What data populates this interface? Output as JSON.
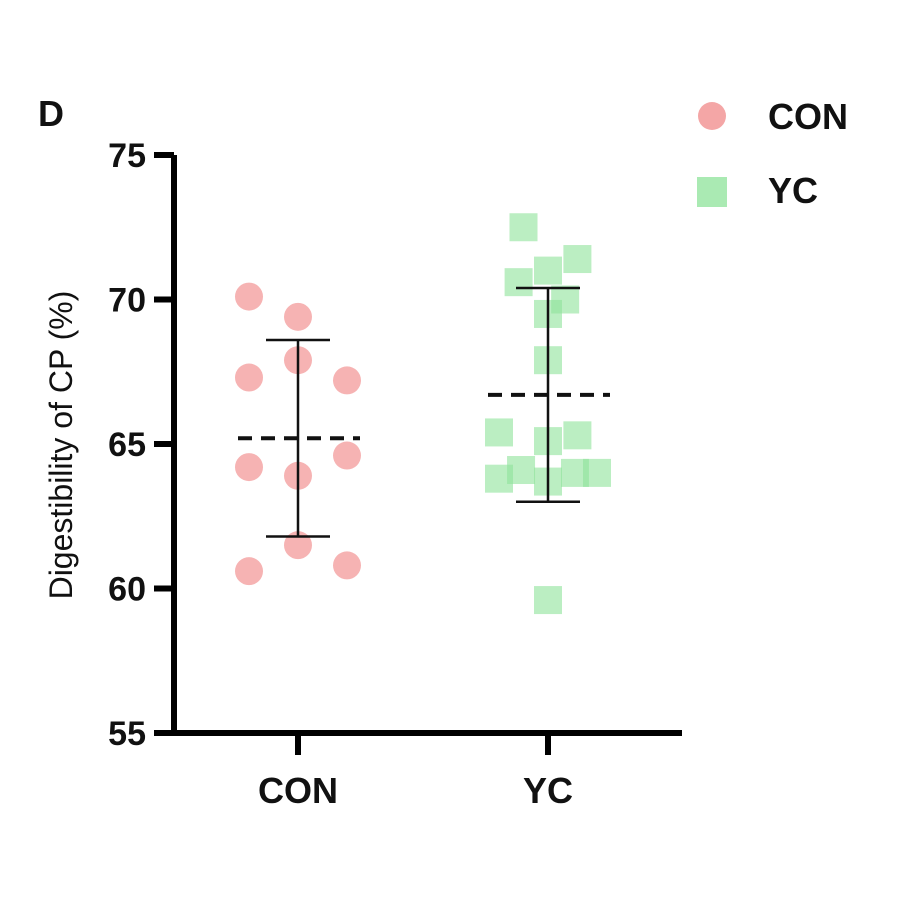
{
  "panel_label": "D",
  "chart_data": {
    "type": "scatter",
    "title": "",
    "xlabel": "",
    "ylabel": "Digestibility of CP (%)",
    "categories": [
      "CON",
      "YC"
    ],
    "ylim": [
      55,
      75
    ],
    "yticks": [
      55,
      60,
      65,
      70,
      75
    ],
    "legend_position": "top-right",
    "series": [
      {
        "name": "CON",
        "color": "#f4a6a6",
        "marker": "circle",
        "category": "CON",
        "mean": 65.2,
        "sd_low": 61.8,
        "sd_high": 68.6,
        "points": [
          {
            "y": 70.1,
            "jitter": -1
          },
          {
            "y": 69.4,
            "jitter": 0
          },
          {
            "y": 67.9,
            "jitter": 0
          },
          {
            "y": 67.3,
            "jitter": -1
          },
          {
            "y": 67.2,
            "jitter": 1
          },
          {
            "y": 64.6,
            "jitter": 1
          },
          {
            "y": 64.2,
            "jitter": -1
          },
          {
            "y": 63.9,
            "jitter": 0
          },
          {
            "y": 61.5,
            "jitter": 0
          },
          {
            "y": 60.8,
            "jitter": 1
          },
          {
            "y": 60.6,
            "jitter": -1
          }
        ]
      },
      {
        "name": "YC",
        "color": "#8ee39a",
        "marker": "square",
        "category": "YC",
        "mean": 66.7,
        "sd_low": 63.0,
        "sd_high": 70.4,
        "points": [
          {
            "y": 72.5,
            "jitter": -0.5
          },
          {
            "y": 71.4,
            "jitter": 0.6
          },
          {
            "y": 71.0,
            "jitter": 0
          },
          {
            "y": 70.6,
            "jitter": -0.6
          },
          {
            "y": 70.0,
            "jitter": 0.35
          },
          {
            "y": 69.5,
            "jitter": 0
          },
          {
            "y": 67.9,
            "jitter": 0
          },
          {
            "y": 65.4,
            "jitter": -1
          },
          {
            "y": 65.3,
            "jitter": 0.6
          },
          {
            "y": 65.1,
            "jitter": 0
          },
          {
            "y": 64.1,
            "jitter": -0.55
          },
          {
            "y": 64.0,
            "jitter": 0.55
          },
          {
            "y": 64.0,
            "jitter": 1
          },
          {
            "y": 63.8,
            "jitter": -1
          },
          {
            "y": 63.7,
            "jitter": 0
          },
          {
            "y": 59.6,
            "jitter": 0
          }
        ]
      }
    ]
  }
}
